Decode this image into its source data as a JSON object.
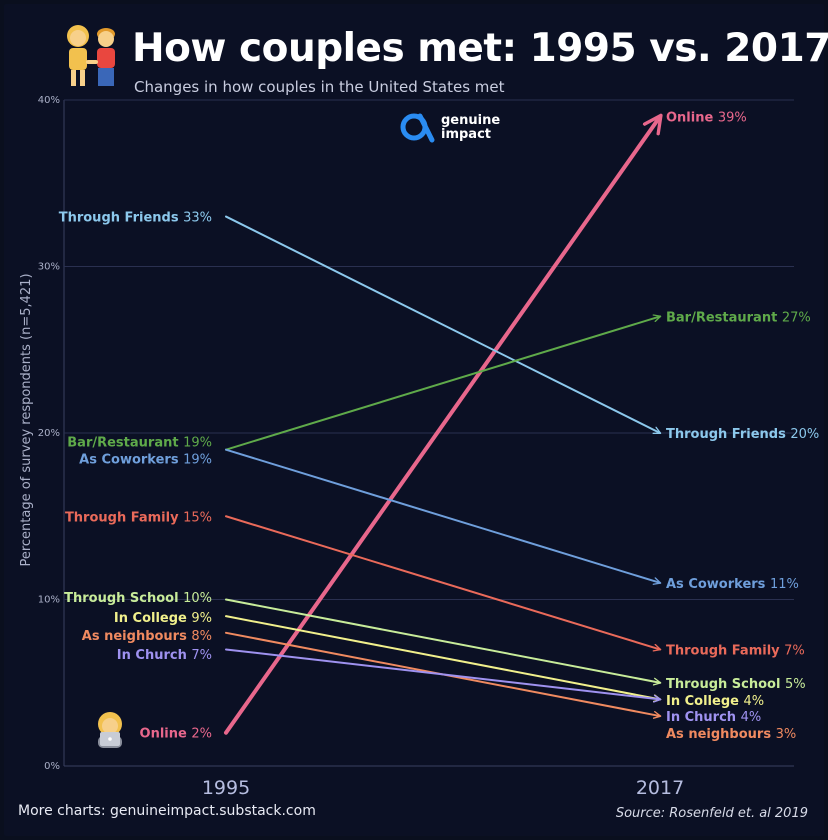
{
  "header": {
    "title": "How couples met: 1995 vs. 2017",
    "subtitle": "Changes in how couples in the United States met"
  },
  "logo": {
    "line1": "genuine",
    "line2": "impact",
    "icon": "genuine-impact-logo"
  },
  "footer": {
    "more_charts": "More charts: genuineimpact.substack.com",
    "source": "Source: Rosenfeld et. al 2019"
  },
  "icons": {
    "couple": "couple-emoji-icon",
    "person_laptop": "person-with-laptop-icon"
  },
  "chart_data": {
    "type": "line",
    "categories": [
      "1995",
      "2017"
    ],
    "ylabel": "Percentage of survey respondents (n=5,421)",
    "ylim": [
      0,
      40
    ],
    "yticks": [
      "0%",
      "10%",
      "20%",
      "30%",
      "40%"
    ],
    "grid": true,
    "series": [
      {
        "name": "Online",
        "values": [
          2,
          39
        ],
        "color": "#e8678c",
        "start_label": "Online 2%",
        "end_label": "Online 39%",
        "start_name": "Online",
        "start_val": "2%",
        "end_name": "Online",
        "end_val": "39%"
      },
      {
        "name": "Through Friends",
        "values": [
          33,
          20
        ],
        "color": "#8cc8ec",
        "start_name": "Through Friends",
        "start_val": "33%",
        "end_name": "Through Friends",
        "end_val": "20%"
      },
      {
        "name": "Bar/Restaurant",
        "values": [
          19,
          27
        ],
        "color": "#5faa4a",
        "start_name": "Bar/Restaurant",
        "start_val": "19%",
        "end_name": "Bar/Restaurant",
        "end_val": "27%"
      },
      {
        "name": "As Coworkers",
        "values": [
          19,
          11
        ],
        "color": "#6f9fdc",
        "start_name": "As Coworkers",
        "start_val": "19%",
        "end_name": "As Coworkers",
        "end_val": "11%"
      },
      {
        "name": "Through Family",
        "values": [
          15,
          7
        ],
        "color": "#ea6a5a",
        "start_name": "Through Family",
        "start_val": "15%",
        "end_name": "Through Family",
        "end_val": "7%"
      },
      {
        "name": "Through School",
        "values": [
          10,
          5
        ],
        "color": "#c8ec9a",
        "start_name": "Through School",
        "start_val": "10%",
        "end_name": "Through School",
        "end_val": "5%"
      },
      {
        "name": "In College",
        "values": [
          9,
          4
        ],
        "color": "#f1f08c",
        "start_name": "In College",
        "start_val": "9%",
        "end_name": "In College",
        "end_val": "4%"
      },
      {
        "name": "As neighbours",
        "values": [
          8,
          3
        ],
        "color": "#f08a60",
        "start_name": "As neighbours",
        "start_val": "8%",
        "end_name": "As neighbours",
        "end_val": "3%"
      },
      {
        "name": "In Church",
        "values": [
          7,
          4
        ],
        "color": "#9f92f0",
        "start_name": "In Church",
        "start_val": "7%",
        "end_name": "In Church",
        "end_val": "4%"
      }
    ]
  }
}
